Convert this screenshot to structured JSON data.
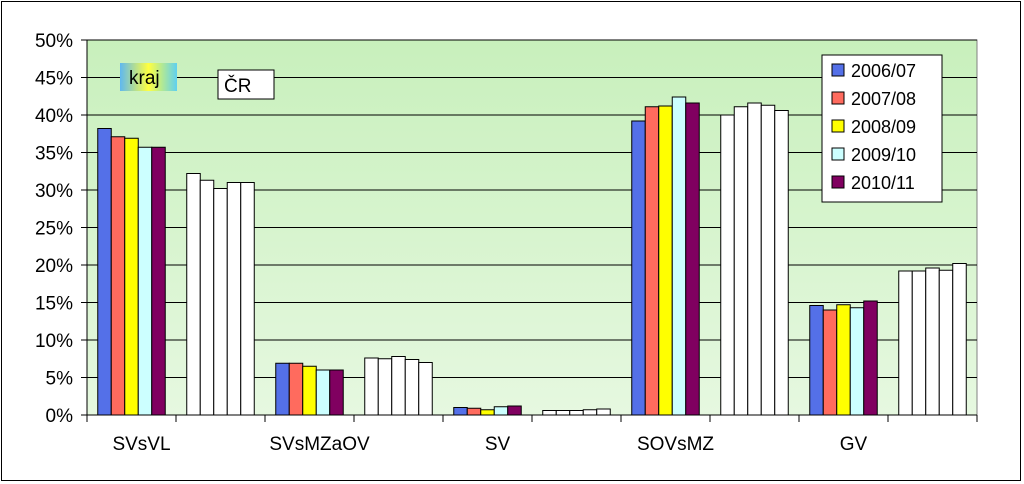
{
  "chart_data": {
    "type": "bar",
    "title": "",
    "xlabel": "",
    "ylabel": "",
    "ylim": [
      0,
      50
    ],
    "yticks": [
      "0%",
      "5%",
      "10%",
      "15%",
      "20%",
      "25%",
      "30%",
      "35%",
      "40%",
      "45%",
      "50%"
    ],
    "grid": true,
    "legend_position": "top-right",
    "categories": [
      "SVsVL",
      "SVsMZaOV",
      "SV",
      "SOVsMZ",
      "GV"
    ],
    "groups": [
      {
        "tag": "kraj",
        "series": [
          {
            "name": "2006/07",
            "color": "#5470e8",
            "values": [
              38.2,
              6.9,
              1.0,
              39.2,
              14.6
            ]
          },
          {
            "name": "2007/08",
            "color": "#ff6b5e",
            "values": [
              37.1,
              6.9,
              0.9,
              41.1,
              14.0
            ]
          },
          {
            "name": "2008/09",
            "color": "#ffff00",
            "values": [
              36.9,
              6.5,
              0.7,
              41.2,
              14.7
            ]
          },
          {
            "name": "2009/10",
            "color": "#ccffff",
            "values": [
              35.7,
              6.0,
              1.1,
              42.4,
              14.3
            ]
          },
          {
            "name": "2010/11",
            "color": "#800060",
            "values": [
              35.7,
              6.0,
              1.2,
              41.6,
              15.2
            ]
          }
        ]
      },
      {
        "tag": "ČR",
        "color": "#ffffff",
        "values": [
          [
            32.2,
            7.6,
            0.6,
            40.0,
            19.2
          ],
          [
            31.3,
            7.5,
            0.6,
            41.1,
            19.2
          ],
          [
            30.2,
            7.8,
            0.6,
            41.6,
            19.6
          ],
          [
            31.0,
            7.4,
            0.7,
            41.3,
            19.3
          ],
          [
            31.0,
            7.0,
            0.8,
            40.6,
            20.2
          ]
        ]
      }
    ],
    "plot_background": "#ccf0c0"
  }
}
